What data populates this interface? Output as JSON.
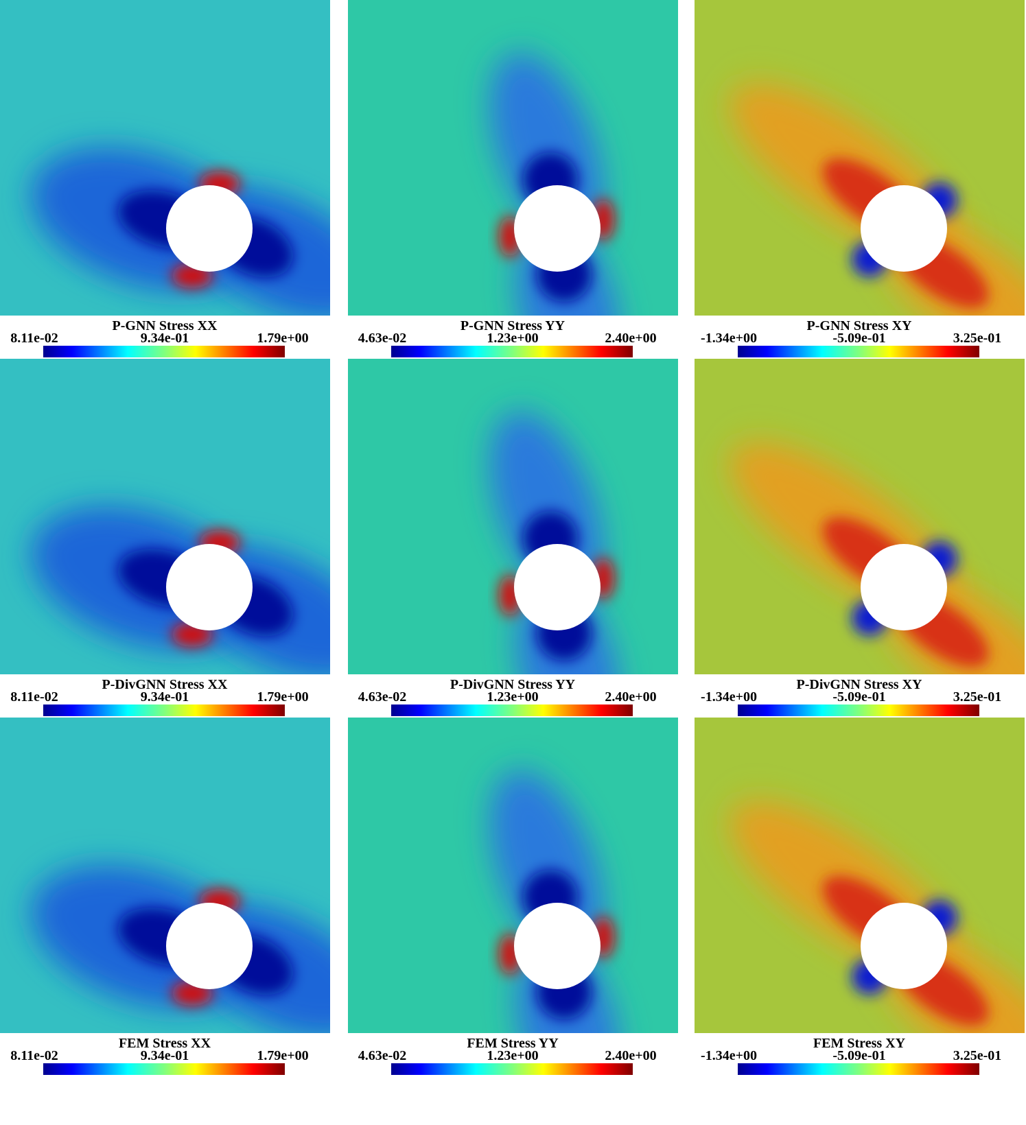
{
  "panels": [
    {
      "title": "P-GNN Stress XX",
      "colorbar_labels": [
        "8.11e-02",
        "9.34e-01",
        "1.79e+00"
      ]
    },
    {
      "title": "P-GNN Stress YY",
      "colorbar_labels": [
        "4.63e-02",
        "1.23e+00",
        "2.40e+00"
      ]
    },
    {
      "title": "P-GNN Stress XY",
      "colorbar_labels": [
        "-1.34e+00",
        "-5.09e-01",
        "3.25e-01"
      ]
    },
    {
      "title": "P-DivGNN Stress XX",
      "colorbar_labels": [
        "8.11e-02",
        "9.34e-01",
        "1.79e+00"
      ]
    },
    {
      "title": "P-DivGNN Stress YY",
      "colorbar_labels": [
        "4.63e-02",
        "1.23e+00",
        "2.40e+00"
      ]
    },
    {
      "title": "P-DivGNN Stress XY",
      "colorbar_labels": [
        "-1.34e+00",
        "-5.09e-01",
        "3.25e-01"
      ]
    },
    {
      "title": "FEM Stress XX",
      "colorbar_labels": [
        "8.11e-02",
        "9.34e-01",
        "1.79e+00"
      ]
    },
    {
      "title": "FEM Stress YY",
      "colorbar_labels": [
        "4.63e-02",
        "1.23e+00",
        "2.40e+00"
      ]
    },
    {
      "title": "FEM Stress XY",
      "colorbar_labels": [
        "-1.34e+00",
        "-5.09e-01",
        "3.25e-01"
      ]
    }
  ]
}
